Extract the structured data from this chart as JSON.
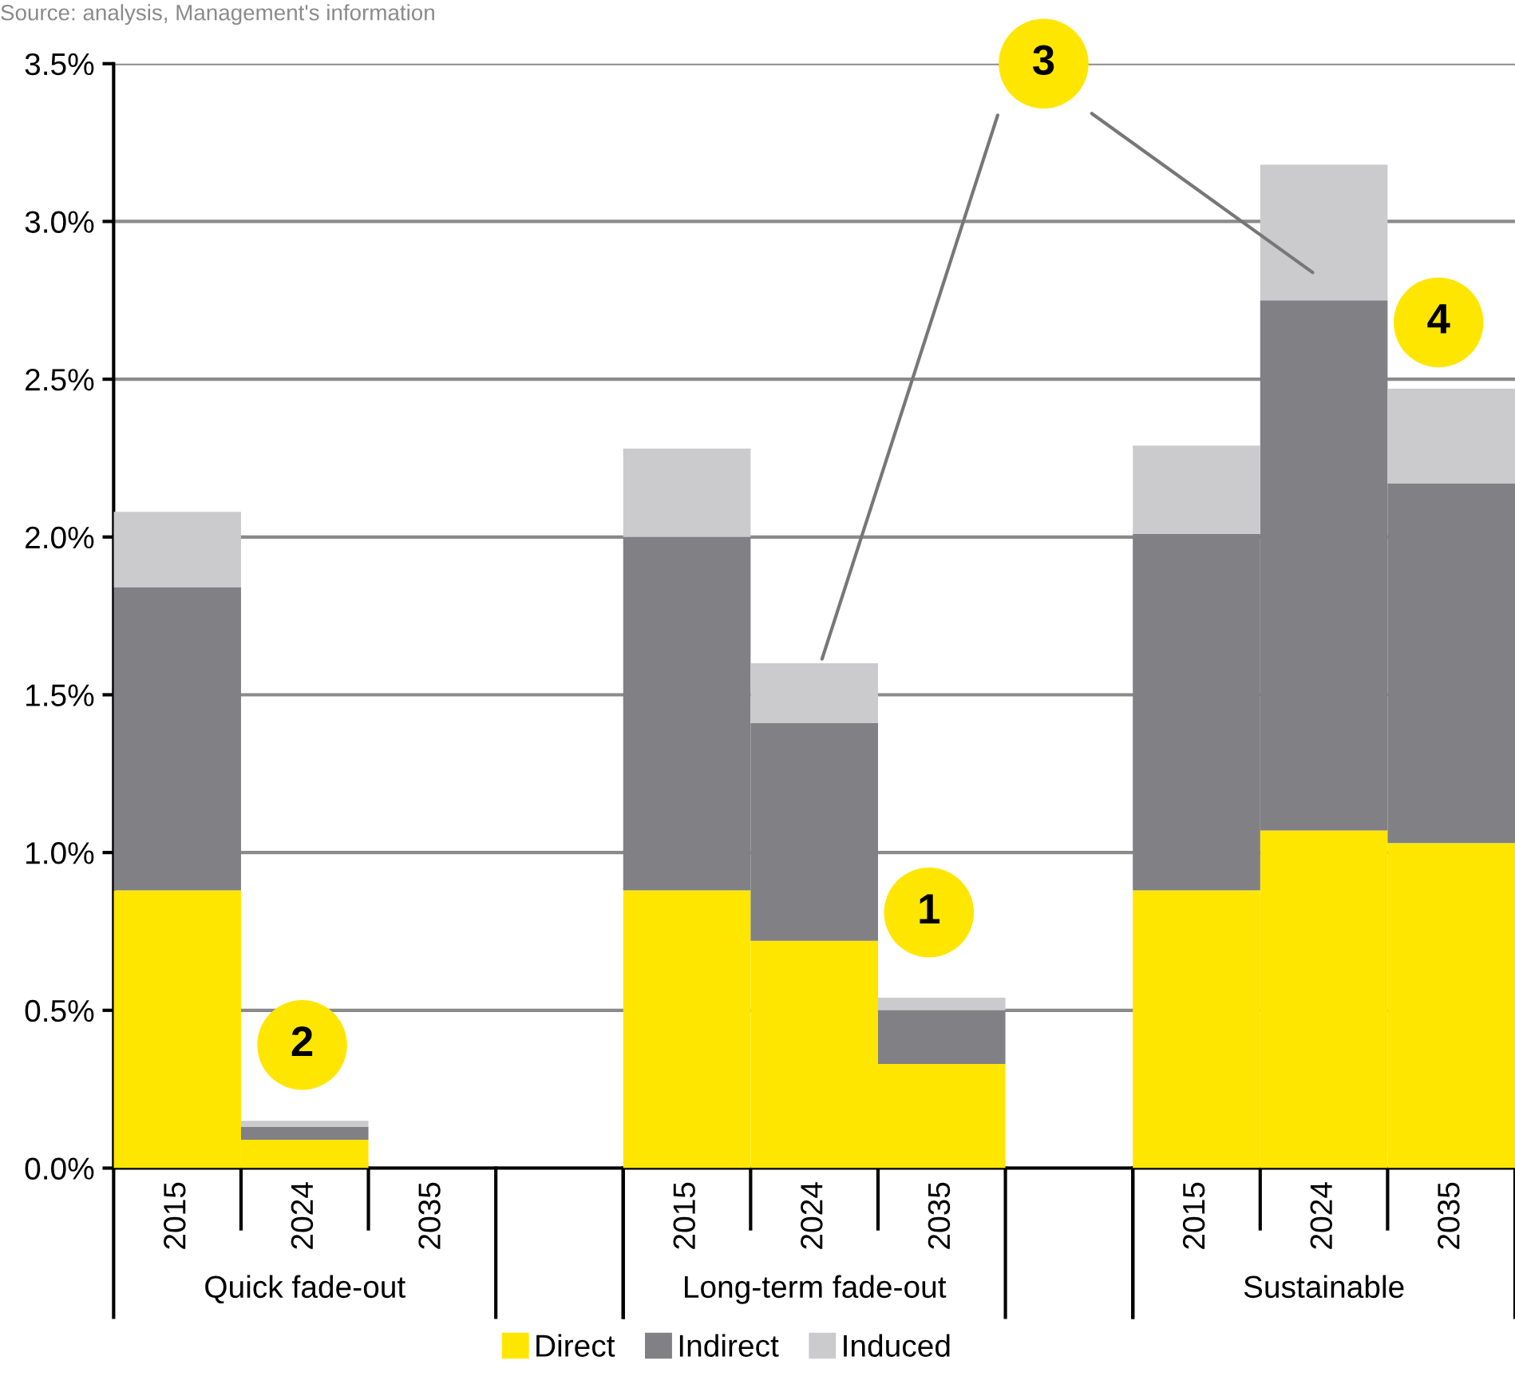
{
  "chart_data": {
    "type": "bar",
    "stacked": true,
    "categories": [
      "2015",
      "2024",
      "2035",
      null,
      "2015",
      "2024",
      "2035",
      null,
      "2015",
      "2024",
      "2035"
    ],
    "series": [
      {
        "name": "Direct",
        "color": "#ffe600",
        "values": [
          0.88,
          0.09,
          null,
          null,
          0.88,
          0.72,
          0.33,
          null,
          0.88,
          1.07,
          1.03
        ]
      },
      {
        "name": "Indirect",
        "color": "#808085",
        "values": [
          0.96,
          0.04,
          null,
          null,
          1.12,
          0.69,
          0.17,
          null,
          1.13,
          1.68,
          1.14
        ]
      },
      {
        "name": "Induced",
        "color": "#cbcbcd",
        "values": [
          0.24,
          0.02,
          null,
          null,
          0.28,
          0.19,
          0.04,
          null,
          0.28,
          0.43,
          0.3
        ]
      }
    ],
    "ylim": [
      0,
      3.5
    ],
    "yticks": [
      {
        "value": 0,
        "label": "0.0%"
      },
      {
        "value": 0.5,
        "label": "0.5%"
      },
      {
        "value": 1.0,
        "label": "1.0%"
      },
      {
        "value": 1.5,
        "label": "1.5%"
      },
      {
        "value": 2.0,
        "label": "2.0%"
      },
      {
        "value": 2.5,
        "label": "2.5%"
      },
      {
        "value": 3.0,
        "label": "3.0%"
      },
      {
        "value": 3.5,
        "label": "3.5%"
      }
    ],
    "grid": "y",
    "legend": "bottom",
    "annotations": [
      "Source: analysis, Management's information",
      "Quick fade-out",
      "Long-term fade-out",
      "Sustainable",
      "1",
      "2",
      "3",
      "4"
    ]
  }
}
